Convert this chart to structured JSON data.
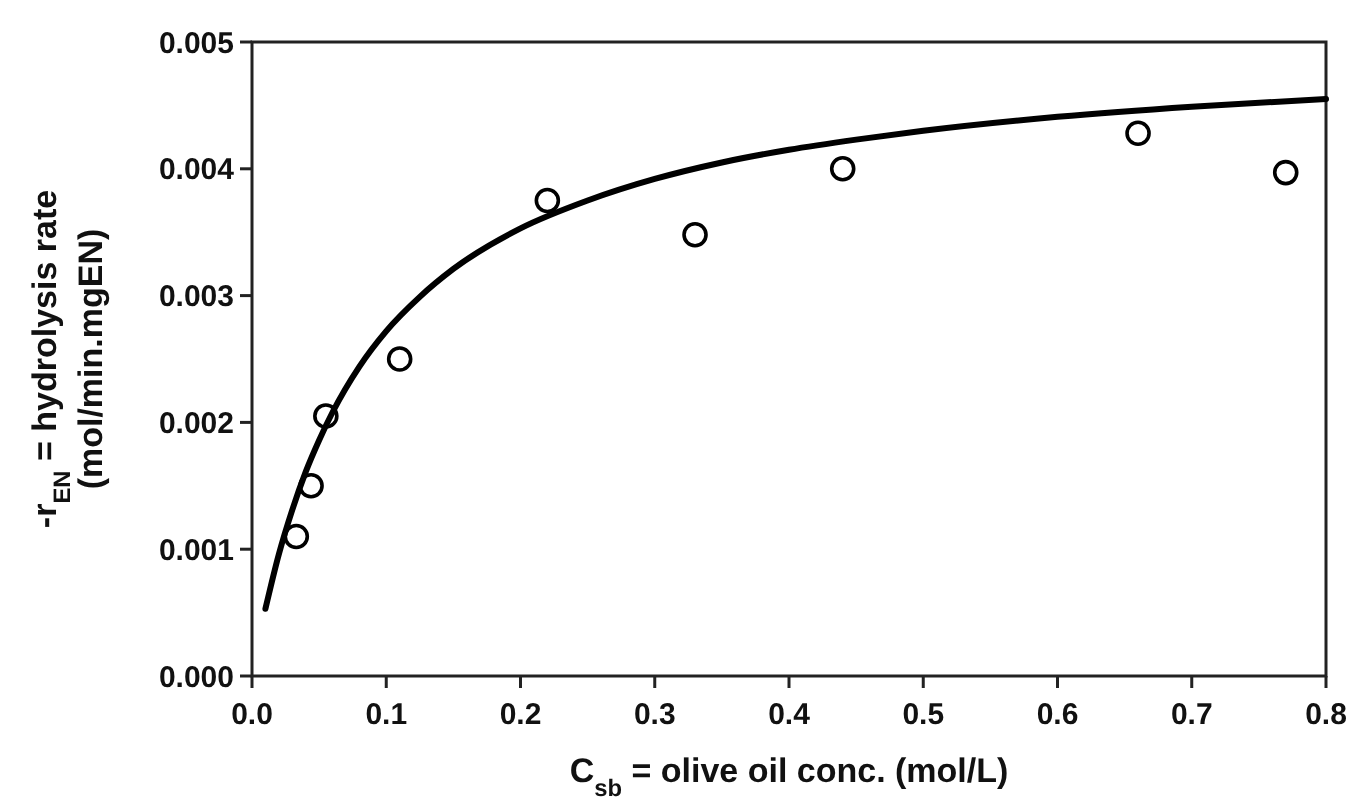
{
  "chart_data": {
    "type": "scatter",
    "xlabel": "C$_{sb}$ = olive oil conc. (mol/L)",
    "ylabel": "-r$_{EN}$ = hydrolysis rate\n(mol/min.mgEN)",
    "xlim": [
      0,
      0.8
    ],
    "ylim": [
      0,
      0.005
    ],
    "xticks": [
      {
        "value": 0,
        "label": "0.0"
      },
      0.1,
      0.2,
      0.3,
      0.4,
      0.5,
      0.6,
      0.7,
      0.8
    ],
    "yticks": [
      {
        "value": 0,
        "label": "0.000"
      },
      0.001,
      0.002,
      0.003,
      0.004,
      0.005
    ],
    "grid": false,
    "series": [
      {
        "color": "#000000",
        "marker": "circle",
        "x": [
          0.033,
          0.044,
          0.055,
          0.11,
          0.22,
          0.33,
          0.44,
          0.66,
          0.77
        ],
        "values": [
          0.0011,
          0.0015,
          0.00205,
          0.0025,
          0.00375,
          0.00348,
          0.004,
          0.00428,
          0.00397
        ]
      },
      {
        "type": "line",
        "color": "#000000",
        "marker": "none",
        "line_style": "solid",
        "x": [
          0.01,
          0.02,
          0.03,
          0.04,
          0.05,
          0.06,
          0.08,
          0.1,
          0.125,
          0.15,
          0.2,
          0.25,
          0.3,
          0.35,
          0.4,
          0.45,
          0.5,
          0.6,
          0.7,
          0.8
        ],
        "values": [
          0.00053,
          0.00096,
          0.00131,
          0.00161,
          0.00186,
          0.00208,
          0.00244,
          0.00272,
          0.00299,
          0.00321,
          0.00353,
          0.00375,
          0.00392,
          0.00405,
          0.00415,
          0.00423,
          0.0043,
          0.00441,
          0.00449,
          0.00455
        ]
      }
    ]
  }
}
